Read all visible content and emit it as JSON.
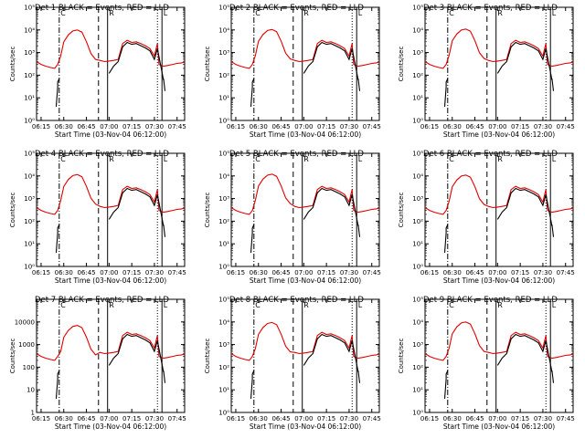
{
  "chart_data": {
    "type": "line",
    "layout": "3x3 grid",
    "ylabel": "Counts/sec",
    "xlabel": "Start Time (03-Nov-04 06:12:00)",
    "xlim": [
      "06:12",
      "07:50"
    ],
    "x_ticks": [
      "06:15",
      "06:30",
      "06:45",
      "07:00",
      "07:15",
      "07:30",
      "07:45"
    ],
    "log_scale_y": true,
    "ylim": [
      1,
      100000
    ],
    "y_ticks_exp": [
      "10⁰",
      "10¹",
      "10²",
      "10³",
      "10⁴",
      "10⁵"
    ],
    "y_ticks_plain": [
      "1",
      "10",
      "100",
      "1000",
      "10000"
    ],
    "series_colors": {
      "events": "#000000",
      "lld": "#e00000"
    },
    "vertical_lines": [
      {
        "time": "06:27",
        "style": "dash-dot",
        "label": "C"
      },
      {
        "time": "06:53",
        "style": "dashed",
        "label": ""
      },
      {
        "time": "06:59",
        "style": "solid",
        "label": "R"
      },
      {
        "time": "07:32",
        "style": "dotted",
        "label": ""
      },
      {
        "time": "07:35",
        "style": "solid",
        "label": "L"
      }
    ],
    "lld_profile": {
      "x": [
        "06:12",
        "06:15",
        "06:18",
        "06:21",
        "06:24",
        "06:26",
        "06:28",
        "06:30",
        "06:33",
        "06:36",
        "06:39",
        "06:42",
        "06:45",
        "06:48",
        "06:51",
        "06:54",
        "06:57",
        "07:00",
        "07:03",
        "07:06",
        "07:09",
        "07:12",
        "07:15",
        "07:18",
        "07:21",
        "07:24",
        "07:27",
        "07:30",
        "07:32",
        "07:33",
        "07:36",
        "07:39",
        "07:42",
        "07:45",
        "07:48",
        "07:50"
      ],
      "y": [
        400,
        300,
        250,
        220,
        200,
        300,
        700,
        3000,
        6000,
        9000,
        10000,
        8000,
        3000,
        900,
        500,
        450,
        400,
        420,
        450,
        500,
        2500,
        3500,
        2800,
        3000,
        2500,
        2000,
        1500,
        700,
        2500,
        300,
        250,
        270,
        300,
        330,
        350,
        380
      ]
    },
    "events_profile": {
      "x": [
        "06:25",
        "06:26",
        "06:26",
        "06:27",
        "07:00",
        "07:03",
        "07:06",
        "07:09",
        "07:12",
        "07:15",
        "07:18",
        "07:21",
        "07:24",
        "07:27",
        "07:30",
        "07:32",
        "07:36",
        "07:36",
        "07:37"
      ],
      "y": [
        4,
        30,
        50,
        70,
        120,
        250,
        400,
        1800,
        2800,
        2300,
        2500,
        2000,
        1600,
        1200,
        500,
        1500,
        60,
        70,
        20
      ]
    },
    "panels": [
      {
        "title": "Det 1  BLACK = Events, RED = LLD",
        "peak_scale": 1.0,
        "yticks": "exp"
      },
      {
        "title": "Det 2  BLACK = Events, RED = LLD",
        "peak_scale": 1.05,
        "yticks": "exp"
      },
      {
        "title": "Det 3  BLACK = Events, RED = LLD",
        "peak_scale": 1.1,
        "yticks": "exp"
      },
      {
        "title": "Det 4  BLACK = Events, RED = LLD",
        "peak_scale": 1.15,
        "yticks": "exp"
      },
      {
        "title": "Det 5  BLACK = Events, RED = LLD",
        "peak_scale": 1.2,
        "yticks": "exp"
      },
      {
        "title": "Det 6  BLACK = Events, RED = LLD",
        "peak_scale": 1.1,
        "yticks": "exp"
      },
      {
        "title": "Det 7  BLACK = Events, RED = LLD",
        "peak_scale": 0.7,
        "yticks": "plain"
      },
      {
        "title": "Det 8  BLACK = Events, RED = LLD",
        "peak_scale": 0.95,
        "yticks": "exp"
      },
      {
        "title": "Det 9  BLACK = Events, RED = LLD",
        "peak_scale": 1.0,
        "yticks": "exp"
      }
    ]
  }
}
